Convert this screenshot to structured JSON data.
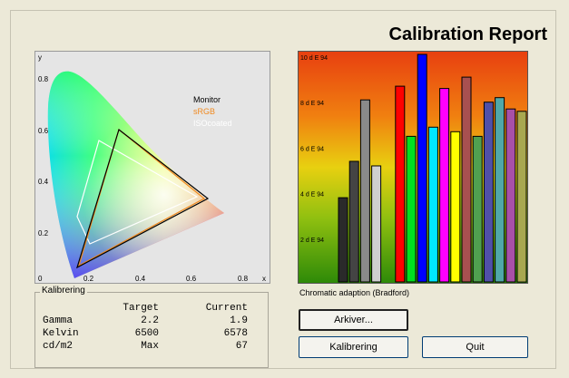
{
  "title": "Calibration Report",
  "gamut": {
    "legend": [
      "Monitor",
      "sRGB",
      "ISOcoated"
    ],
    "legend_colors": [
      "#000000",
      "#f08a20",
      "#ffffff"
    ],
    "ticks_y": [
      "0.8",
      "0.6",
      "0.4",
      "0.2",
      "0"
    ],
    "ticks_x": [
      "0.2",
      "0.4",
      "0.6",
      "0.8",
      "x"
    ],
    "y_axis_label": "y"
  },
  "chart_data": {
    "type": "bar",
    "yticks": [
      "10 d E 94",
      "8 d E 94",
      "6 d E 94",
      "4 d E 94",
      "2 d E 94"
    ],
    "ylim": [
      0,
      10
    ],
    "values": [
      3.7,
      5.3,
      8.0,
      5.1,
      8.6,
      6.4,
      10.0,
      6.8,
      8.5,
      6.6,
      9.0,
      6.4,
      7.9,
      8.1,
      7.6,
      7.5
    ],
    "colors": [
      "#2a2a2a",
      "#444444",
      "#8a8a8a",
      "#cfcfcf",
      "#ff0000",
      "#00e020",
      "#0000ff",
      "#00e8ff",
      "#ff00ff",
      "#ffff00",
      "#a85050",
      "#50a050",
      "#5050a8",
      "#50a8a8",
      "#a850a8",
      "#a8a850"
    ]
  },
  "caption": "Chromatic adaption (Bradford)",
  "kalibrering": {
    "legend": "Kalibrering",
    "headers": [
      "",
      "Target",
      "Current"
    ],
    "rows": [
      [
        "Gamma",
        "2.2",
        "1.9"
      ],
      [
        "Kelvin",
        "6500",
        "6578"
      ],
      [
        "cd/m2",
        "Max",
        "67"
      ]
    ]
  },
  "buttons": {
    "arkiver": "Arkiver...",
    "kalibrering": "Kalibrering",
    "quit": "Quit"
  }
}
